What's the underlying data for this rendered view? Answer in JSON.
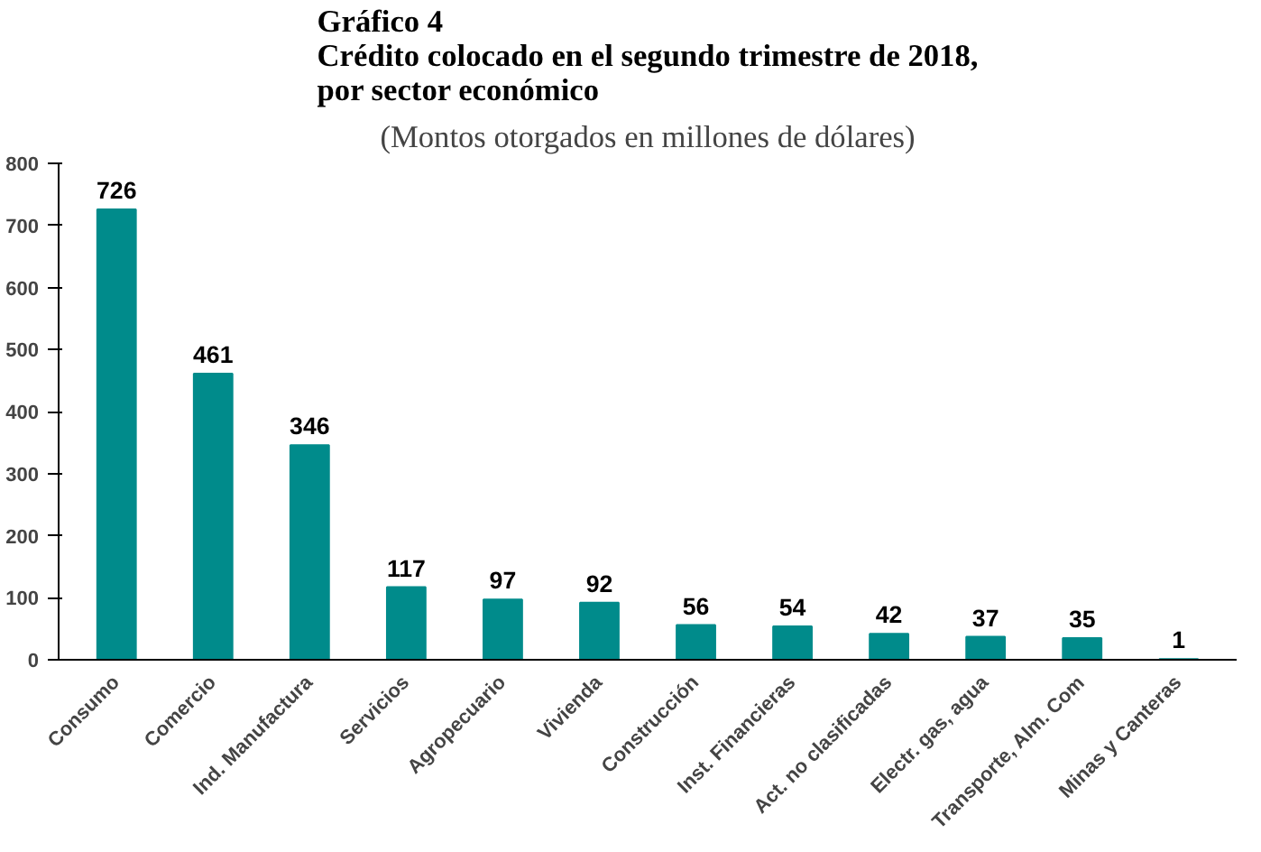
{
  "chart_data": {
    "type": "bar",
    "title": "Gráfico 4\nCrédito colocado en el segundo trimestre de 2018,\npor sector económico",
    "subtitle": "(Montos otorgados en millones de dólares)",
    "categories": [
      "Consumo",
      "Comercio",
      "Ind. Manufactura",
      "Servicios",
      "Agropecuario",
      "Vivienda",
      "Construcción",
      "Inst. Financieras",
      "Act. no clasificadas",
      "Electr. gas, agua",
      "Transporte, Alm. Com",
      "Minas y Canteras"
    ],
    "values": [
      726,
      461,
      346,
      117,
      97,
      92,
      56,
      54,
      42,
      37,
      35,
      1
    ],
    "color": "#008b8b",
    "ylim": [
      0,
      800
    ],
    "yticks": [
      0,
      100,
      200,
      300,
      400,
      500,
      600,
      700,
      800
    ],
    "grid": false,
    "data_labels": true
  }
}
